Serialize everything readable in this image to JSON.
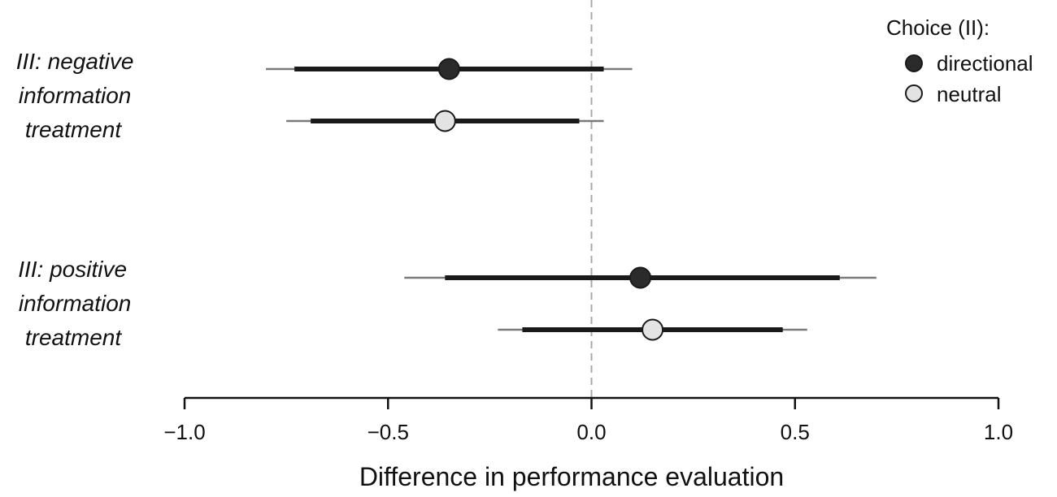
{
  "chart_data": {
    "type": "forest",
    "xlabel": "Difference in performance evaluation",
    "xlim": [
      -1.0,
      1.0
    ],
    "x_ticks": [
      -1.0,
      -0.5,
      0.0,
      0.5,
      1.0
    ],
    "x_tick_labels": [
      "−1.0",
      "−0.5",
      "0.0",
      "0.5",
      "1.0"
    ],
    "reference_line": 0.0,
    "groups": [
      {
        "label_lines": [
          "III: negative",
          "information",
          "treatment"
        ],
        "rows": [
          {
            "series": "directional",
            "estimate": -0.35,
            "ci_inner": [
              -0.73,
              0.03
            ],
            "ci_outer": [
              -0.8,
              0.1
            ]
          },
          {
            "series": "neutral",
            "estimate": -0.36,
            "ci_inner": [
              -0.69,
              -0.03
            ],
            "ci_outer": [
              -0.75,
              0.03
            ]
          }
        ]
      },
      {
        "label_lines": [
          "III: positive",
          "information",
          "treatment"
        ],
        "rows": [
          {
            "series": "directional",
            "estimate": 0.12,
            "ci_inner": [
              -0.36,
              0.61
            ],
            "ci_outer": [
              -0.46,
              0.7
            ]
          },
          {
            "series": "neutral",
            "estimate": 0.15,
            "ci_inner": [
              -0.17,
              0.47
            ],
            "ci_outer": [
              -0.23,
              0.53
            ]
          }
        ]
      }
    ],
    "legend": {
      "title": "Choice (II):",
      "position": "top-right",
      "entries": [
        {
          "name": "directional",
          "color": "#2b2b2b"
        },
        {
          "name": "neutral",
          "color": "#e3e3e3"
        }
      ]
    },
    "colors": {
      "inner_ci": "#1a1a1a",
      "outer_ci": "#7a7a7a",
      "reference_line": "#a8a8a8",
      "marker_stroke": "#1a1a1a"
    }
  }
}
